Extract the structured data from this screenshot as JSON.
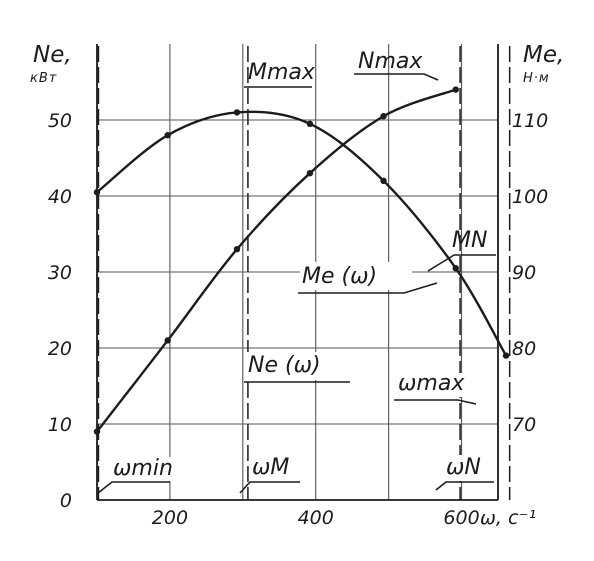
{
  "chart_data": {
    "type": "line",
    "x_range": [
      100,
      650
    ],
    "x_ticks": [
      200,
      400,
      600
    ],
    "x_axis_label": "ω, с⁻¹",
    "left_axis": {
      "label": "Ne,",
      "unit": "кВт",
      "range": [
        0,
        60
      ],
      "ticks": [
        "0",
        "10",
        "20",
        "30",
        "40",
        "50"
      ]
    },
    "right_axis": {
      "label": "Me,",
      "unit": "Н·м",
      "range": [
        60,
        120
      ],
      "ticks": [
        "70",
        "80",
        "90",
        "100",
        "110"
      ]
    },
    "grid": true,
    "series": [
      {
        "name": "Ne (ω)",
        "axis": "left",
        "x": [
          100,
          197,
          292,
          392,
          493,
          592
        ],
        "values": [
          9,
          21,
          33,
          43,
          50.5,
          54
        ]
      },
      {
        "name": "Me (ω)",
        "axis": "right",
        "x": [
          100,
          197,
          292,
          392,
          493,
          592,
          661
        ],
        "values": [
          100.5,
          108,
          111,
          109.5,
          102,
          90.5,
          79
        ]
      }
    ],
    "annotations": {
      "m_max": "Mmax",
      "n_max": "Nmax",
      "m_n": "MN",
      "me_curve": "Me (ω)",
      "ne_curve": "Ne (ω)",
      "omega_min": "ωmin",
      "omega_m": "ωM",
      "omega_n": "ωN",
      "omega_max": "ωmax"
    },
    "reference_lines": [
      {
        "name": "ωmin",
        "x": 102
      },
      {
        "name": "ωM",
        "x": 307
      },
      {
        "name": "ωN",
        "x": 598
      },
      {
        "name": "ωmax",
        "x": 666
      }
    ]
  }
}
